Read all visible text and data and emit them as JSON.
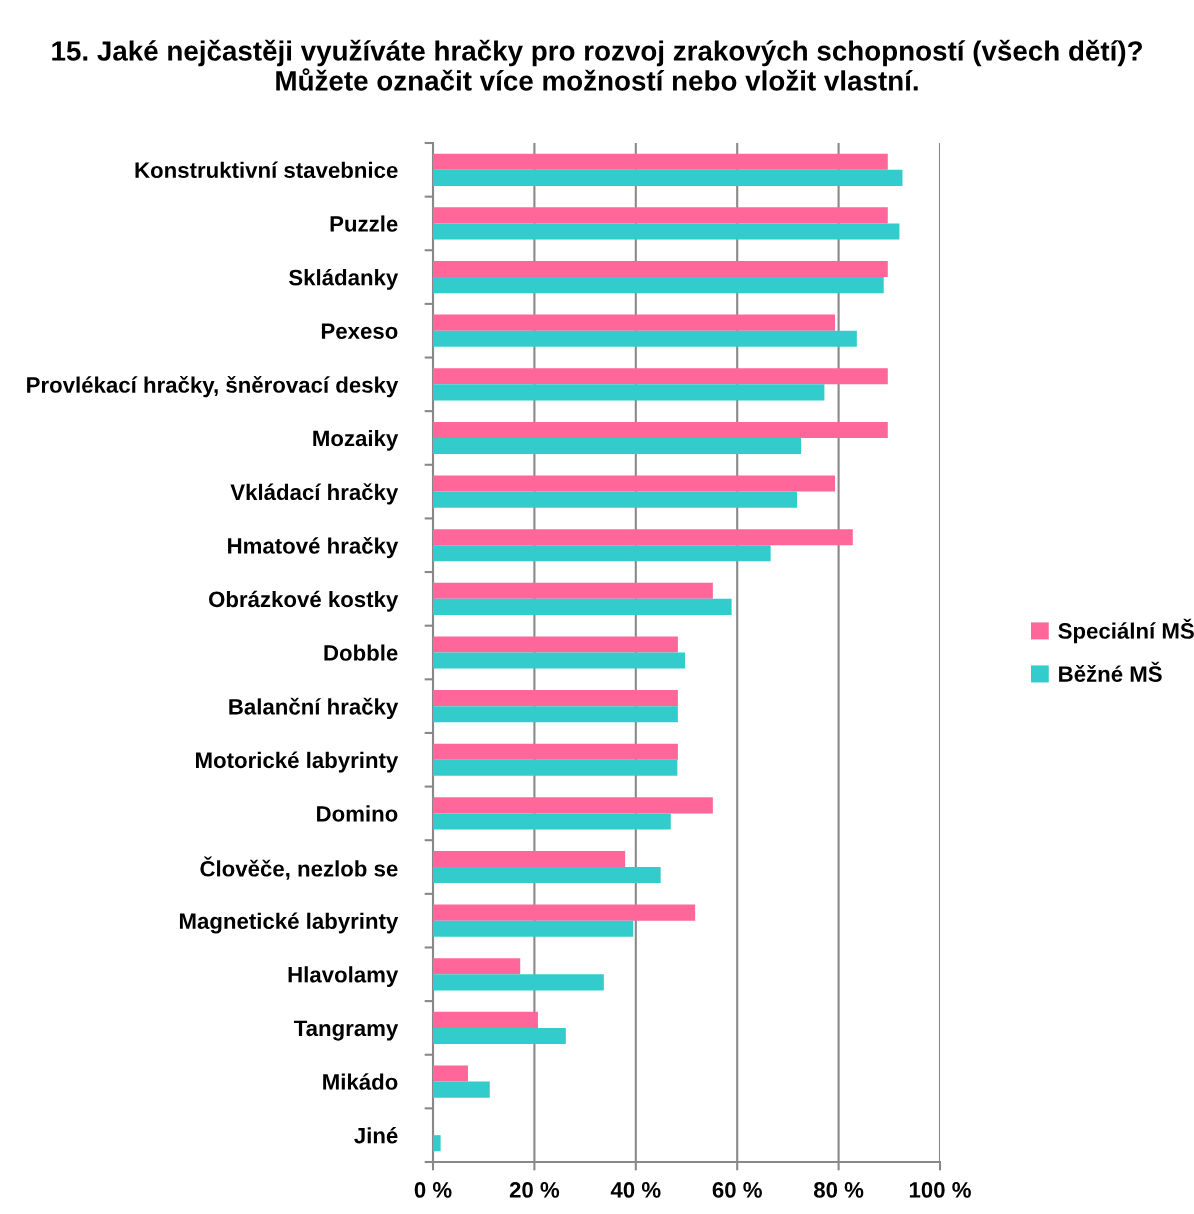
{
  "chart_data": {
    "type": "bar",
    "orientation": "horizontal",
    "title": "15. Jaké nejčastěji využíváte hračky pro rozvoj zrakových schopností (všech dětí)? Můžete označit více možností nebo vložit vlastní.",
    "categories": [
      "Konstruktivní stavebnice",
      "Puzzle",
      "Skládanky",
      "Pexeso",
      "Provlékací hračky, šněrovací desky",
      "Mozaiky",
      "Vkládací hračky",
      "Hmatové hračky",
      "Obrázkové kostky",
      "Dobble",
      "Balanční hračky",
      "Motorické labyrinty",
      "Domino",
      "Člověče, nezlob se",
      "Magnetické labyrinty",
      "Hlavolamy",
      "Tangramy",
      "Mikádo",
      "Jiné"
    ],
    "series": [
      {
        "name": "Speciální MŠ",
        "color": "#ff6699",
        "values": [
          89.7,
          89.7,
          89.7,
          79.3,
          89.7,
          89.7,
          79.3,
          82.8,
          55.2,
          48.3,
          48.3,
          48.3,
          55.2,
          37.9,
          51.7,
          17.2,
          20.7,
          6.9,
          0
        ]
      },
      {
        "name": "Běžné MŠ",
        "color": "#33cccc",
        "values": [
          92.6,
          92.0,
          88.9,
          83.6,
          77.2,
          72.6,
          71.8,
          66.6,
          58.9,
          49.7,
          48.3,
          48.2,
          46.9,
          44.9,
          39.5,
          33.7,
          26.2,
          11.2,
          1.5
        ]
      }
    ],
    "xlim": [
      0,
      100
    ],
    "xticks": [
      {
        "value": 0,
        "label": "0 %"
      },
      {
        "value": 20,
        "label": "20 %"
      },
      {
        "value": 40,
        "label": "40 %"
      },
      {
        "value": 60,
        "label": "60 %"
      },
      {
        "value": 80,
        "label": "80 %"
      },
      {
        "value": 100,
        "label": "100 %"
      }
    ],
    "grid": "x",
    "legend": "right"
  }
}
